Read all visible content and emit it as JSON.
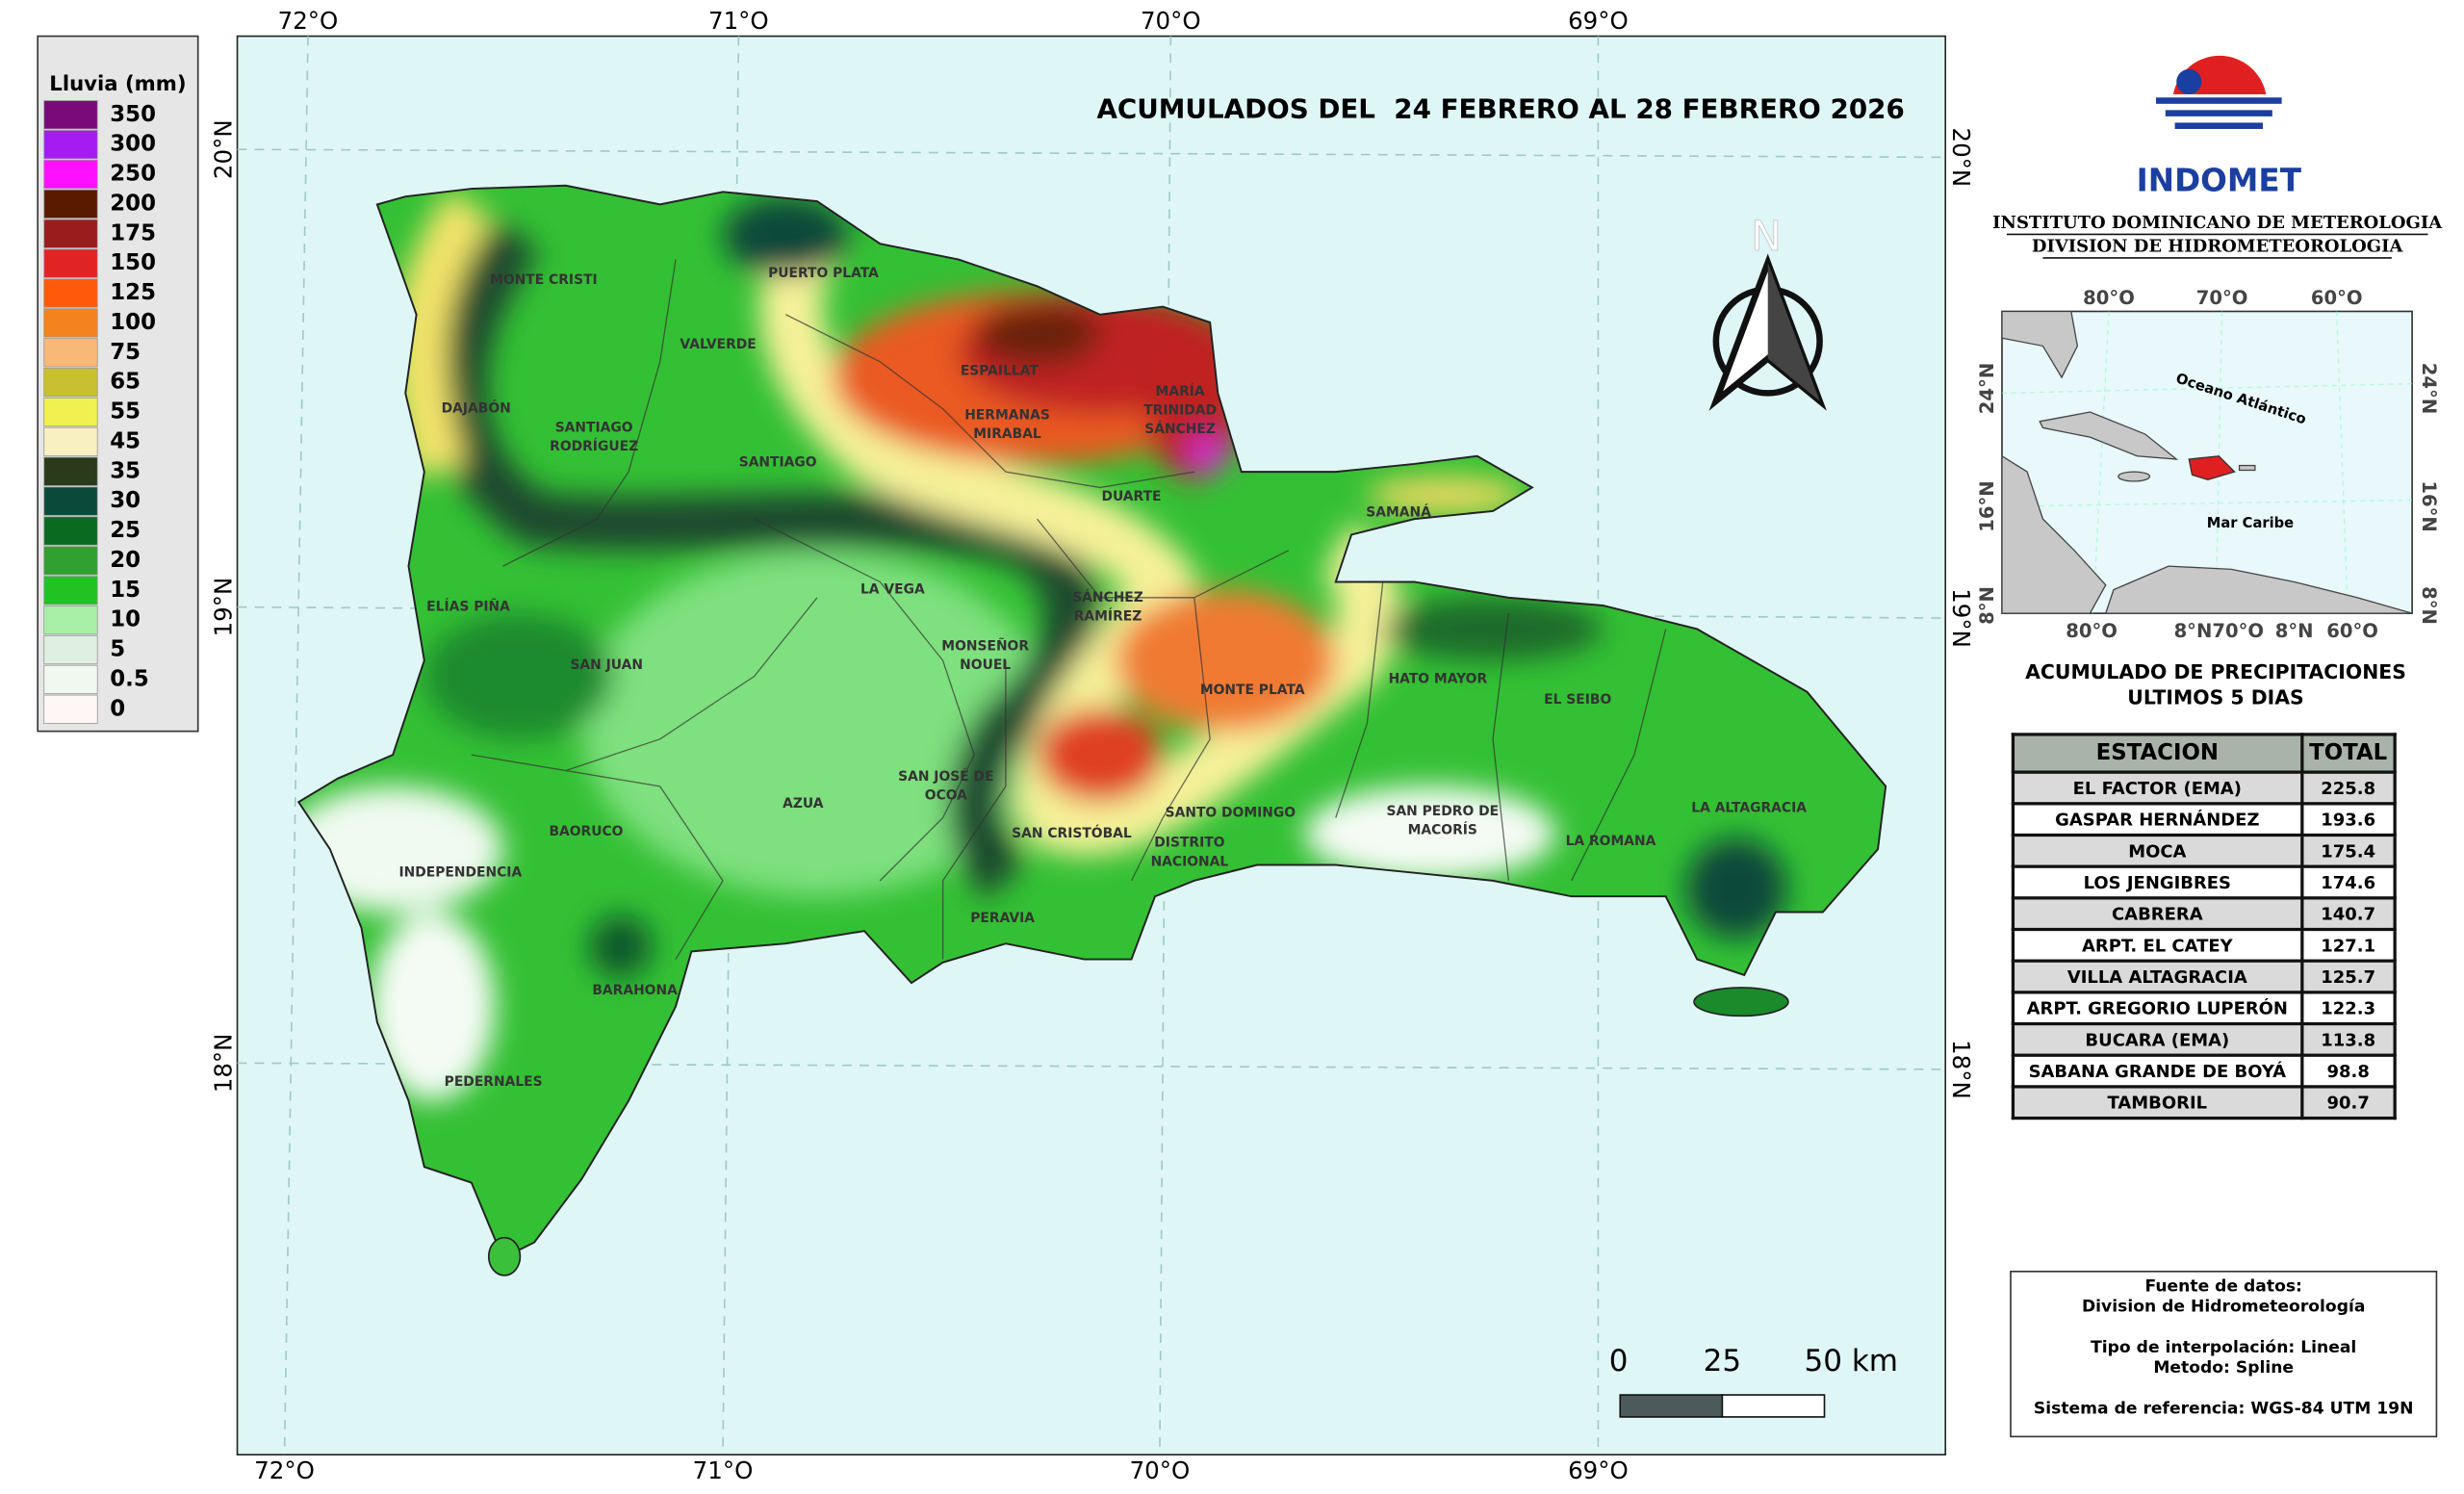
{
  "legend": {
    "title": "Lluvia (mm)",
    "items": [
      {
        "label": "350",
        "color": "#7a0a7a"
      },
      {
        "label": "300",
        "color": "#a41cf0"
      },
      {
        "label": "250",
        "color": "#ff10ff"
      },
      {
        "label": "200",
        "color": "#5a1a00"
      },
      {
        "label": "175",
        "color": "#9b1c1c"
      },
      {
        "label": "150",
        "color": "#e02424"
      },
      {
        "label": "125",
        "color": "#ff5a0a"
      },
      {
        "label": "100",
        "color": "#f4821e"
      },
      {
        "label": "75",
        "color": "#f8b878"
      },
      {
        "label": "65",
        "color": "#c8c030"
      },
      {
        "label": "55",
        "color": "#f0f050"
      },
      {
        "label": "45",
        "color": "#f8f0c0"
      },
      {
        "label": "35",
        "color": "#2a3a1a"
      },
      {
        "label": "30",
        "color": "#0a4a3a"
      },
      {
        "label": "25",
        "color": "#0a6a20"
      },
      {
        "label": "20",
        "color": "#30a030"
      },
      {
        "label": "15",
        "color": "#22c222"
      },
      {
        "label": "10",
        "color": "#a8f0a8"
      },
      {
        "label": "5",
        "color": "#e0f0e0"
      },
      {
        "label": "0.5",
        "color": "#f0f8f0"
      },
      {
        "label": "0",
        "color": "#fff6f6"
      }
    ]
  },
  "map": {
    "title": "ACUMULADOS DEL  24 FEBRERO AL 28 FEBRERO 2026",
    "north_label": "N",
    "lon_labels": [
      "72°O",
      "71°O",
      "70°O",
      "69°O"
    ],
    "lat_labels": [
      "20°N",
      "19°N",
      "18°N"
    ],
    "scale_labels": [
      "0",
      "25",
      "50 km"
    ],
    "provinces": [
      {
        "lines": [
          "MONTE CRISTI"
        ]
      },
      {
        "lines": [
          "PUERTO PLATA"
        ]
      },
      {
        "lines": [
          "VALVERDE"
        ]
      },
      {
        "lines": [
          "ESPAILLAT"
        ]
      },
      {
        "lines": [
          "HERMANAS",
          "MIRABAL"
        ]
      },
      {
        "lines": [
          "MARÍA",
          "TRINIDAD",
          "SÁNCHEZ"
        ]
      },
      {
        "lines": [
          "DAJABÓN"
        ]
      },
      {
        "lines": [
          "SANTIAGO",
          "RODRÍGUEZ"
        ]
      },
      {
        "lines": [
          "SANTIAGO"
        ]
      },
      {
        "lines": [
          "DUARTE"
        ]
      },
      {
        "lines": [
          "SAMANÁ"
        ]
      },
      {
        "lines": [
          "LA VEGA"
        ]
      },
      {
        "lines": [
          "SÁNCHEZ",
          "RAMÍREZ"
        ]
      },
      {
        "lines": [
          "ELÍAS PIÑA"
        ]
      },
      {
        "lines": [
          "SAN JUAN"
        ]
      },
      {
        "lines": [
          "MONSEÑOR",
          "NOUEL"
        ]
      },
      {
        "lines": [
          "MONTE PLATA"
        ]
      },
      {
        "lines": [
          "HATO MAYOR"
        ]
      },
      {
        "lines": [
          "EL SEIBO"
        ]
      },
      {
        "lines": [
          "SAN JOSÉ DE",
          "OCOA"
        ]
      },
      {
        "lines": [
          "AZUA"
        ]
      },
      {
        "lines": [
          "BAORUCO"
        ]
      },
      {
        "lines": [
          "INDEPENDENCIA"
        ]
      },
      {
        "lines": [
          "SAN CRISTÓBAL"
        ]
      },
      {
        "lines": [
          "SANTO DOMINGO"
        ]
      },
      {
        "lines": [
          "DISTRITO",
          "NACIONAL"
        ]
      },
      {
        "lines": [
          "SAN PEDRO DE",
          "MACORÍS"
        ]
      },
      {
        "lines": [
          "LA ROMANA"
        ]
      },
      {
        "lines": [
          "LA ALTAGRACIA"
        ]
      },
      {
        "lines": [
          "PERAVIA"
        ]
      },
      {
        "lines": [
          "BARAHONA"
        ]
      },
      {
        "lines": [
          "PEDERNALES"
        ]
      }
    ]
  },
  "header": {
    "logo_text": "INDOMET",
    "institute": [
      "INSTITUTO DOMINICANO DE METEROLOGIA",
      "DIVISION DE HIDROMETEOROLOGIA"
    ]
  },
  "inset": {
    "top_labels": [
      "80°O",
      "70°O",
      "60°O"
    ],
    "bottom_labels": [
      "80°O",
      "8°N70°O",
      "8°N",
      "60°O"
    ],
    "side_labels": [
      "24°N",
      "16°N",
      "8°N"
    ],
    "ocean": "Oceano Atlántico",
    "sea": "Mar Caribe"
  },
  "table": {
    "heading": [
      "ACUMULADO DE PRECIPITACIONES",
      "ULTIMOS 5 DIAS"
    ],
    "columns": [
      "ESTACION",
      "TOTAL"
    ],
    "rows": [
      [
        "EL FACTOR (EMA)",
        225.8
      ],
      [
        "GASPAR HERNÁNDEZ",
        193.6
      ],
      [
        "MOCA",
        175.4
      ],
      [
        "LOS JENGIBRES",
        174.6
      ],
      [
        "CABRERA",
        140.7
      ],
      [
        "ARPT. EL CATEY",
        127.1
      ],
      [
        "VILLA ALTAGRACIA",
        125.7
      ],
      [
        "ARPT. GREGORIO LUPERÓN",
        122.3
      ],
      [
        "BUCARA (EMA)",
        113.8
      ],
      [
        "SABANA GRANDE DE BOYÁ",
        98.8
      ],
      [
        "TAMBORIL",
        90.7
      ]
    ]
  },
  "source": {
    "lines": [
      "Fuente de datos:",
      "Division de Hidrometeorología",
      "Tipo de interpolación: Lineal",
      "Metodo: Spline",
      "Sistema de referencia: WGS-84 UTM 19N"
    ]
  }
}
